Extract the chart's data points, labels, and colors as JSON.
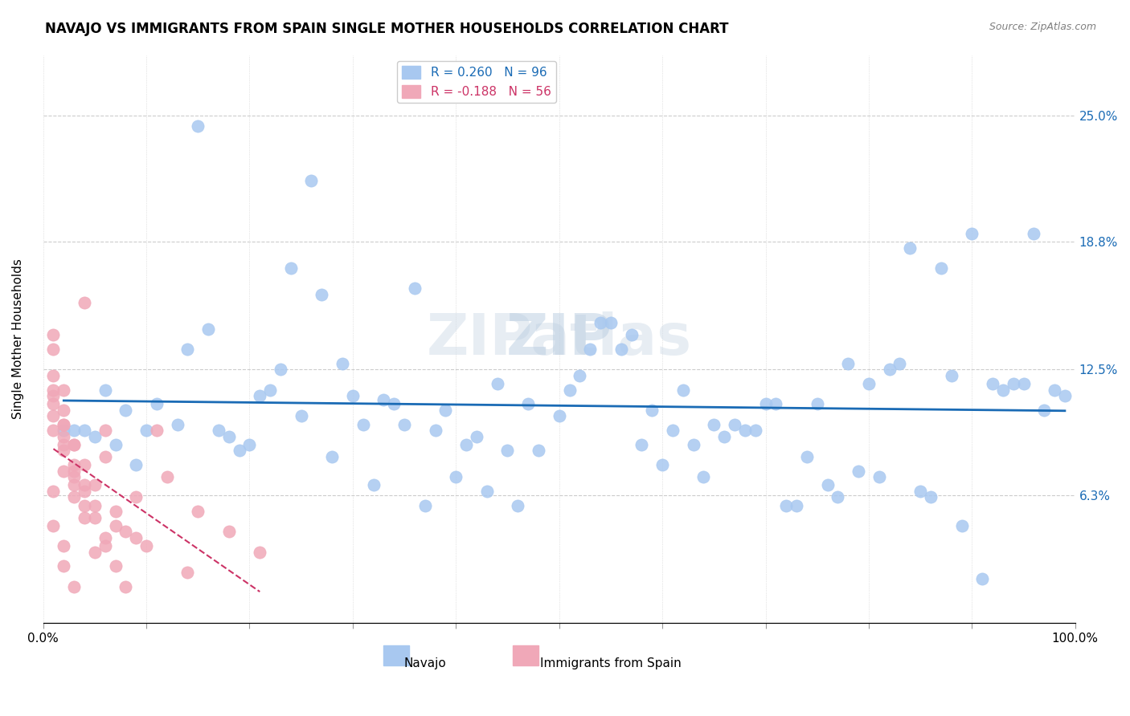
{
  "title": "NAVAJO VS IMMIGRANTS FROM SPAIN SINGLE MOTHER HOUSEHOLDS CORRELATION CHART",
  "source": "Source: ZipAtlas.com",
  "ylabel": "Single Mother Households",
  "xlabel": "",
  "xlim": [
    0,
    1.0
  ],
  "ylim": [
    0,
    0.28
  ],
  "xticks": [
    0.0,
    0.1,
    0.2,
    0.3,
    0.4,
    0.5,
    0.6,
    0.7,
    0.8,
    0.9,
    1.0
  ],
  "xticklabels": [
    "0.0%",
    "",
    "",
    "",
    "",
    "",
    "",
    "",
    "",
    "",
    "100.0%"
  ],
  "ytick_positions": [
    0.063,
    0.125,
    0.188,
    0.25
  ],
  "ytick_labels": [
    "6.3%",
    "12.5%",
    "18.8%",
    "25.0%"
  ],
  "navajo_R": 0.26,
  "navajo_N": 96,
  "spain_R": -0.188,
  "spain_N": 56,
  "navajo_color": "#a8c8f0",
  "navajo_line_color": "#1a6bb5",
  "spain_color": "#f0a8b8",
  "spain_line_color": "#cc3366",
  "watermark": "ZIPatlas",
  "navajo_scatter_x": [
    0.08,
    0.15,
    0.24,
    0.16,
    0.27,
    0.22,
    0.36,
    0.29,
    0.38,
    0.42,
    0.48,
    0.55,
    0.62,
    0.68,
    0.75,
    0.82,
    0.88,
    0.92,
    0.95,
    0.98,
    0.02,
    0.05,
    0.07,
    0.09,
    0.11,
    0.13,
    0.17,
    0.19,
    0.21,
    0.25,
    0.31,
    0.33,
    0.35,
    0.39,
    0.44,
    0.47,
    0.5,
    0.53,
    0.58,
    0.61,
    0.65,
    0.7,
    0.73,
    0.78,
    0.83,
    0.87,
    0.9,
    0.93,
    0.96,
    0.99,
    0.03,
    0.06,
    0.1,
    0.14,
    0.18,
    0.23,
    0.28,
    0.32,
    0.37,
    0.41,
    0.46,
    0.51,
    0.56,
    0.6,
    0.66,
    0.71,
    0.76,
    0.8,
    0.85,
    0.89,
    0.04,
    0.2,
    0.43,
    0.64,
    0.79,
    0.91,
    0.94,
    0.97,
    0.3,
    0.34,
    0.4,
    0.45,
    0.52,
    0.57,
    0.63,
    0.69,
    0.74,
    0.81,
    0.86,
    0.26,
    0.54,
    0.72,
    0.84,
    0.77,
    0.67,
    0.59
  ],
  "navajo_scatter_y": [
    0.105,
    0.245,
    0.175,
    0.145,
    0.162,
    0.115,
    0.165,
    0.128,
    0.095,
    0.092,
    0.085,
    0.148,
    0.115,
    0.095,
    0.108,
    0.125,
    0.122,
    0.118,
    0.118,
    0.115,
    0.095,
    0.092,
    0.088,
    0.078,
    0.108,
    0.098,
    0.095,
    0.085,
    0.112,
    0.102,
    0.098,
    0.11,
    0.098,
    0.105,
    0.118,
    0.108,
    0.102,
    0.135,
    0.088,
    0.095,
    0.098,
    0.108,
    0.058,
    0.128,
    0.128,
    0.175,
    0.192,
    0.115,
    0.192,
    0.112,
    0.095,
    0.115,
    0.095,
    0.135,
    0.092,
    0.125,
    0.082,
    0.068,
    0.058,
    0.088,
    0.058,
    0.115,
    0.135,
    0.078,
    0.092,
    0.108,
    0.068,
    0.118,
    0.065,
    0.048,
    0.095,
    0.088,
    0.065,
    0.072,
    0.075,
    0.022,
    0.118,
    0.105,
    0.112,
    0.108,
    0.072,
    0.085,
    0.122,
    0.142,
    0.088,
    0.095,
    0.082,
    0.072,
    0.062,
    0.218,
    0.148,
    0.058,
    0.185,
    0.062,
    0.098,
    0.105
  ],
  "spain_scatter_x": [
    0.01,
    0.02,
    0.03,
    0.04,
    0.05,
    0.06,
    0.07,
    0.08,
    0.09,
    0.1,
    0.01,
    0.02,
    0.03,
    0.04,
    0.05,
    0.06,
    0.01,
    0.02,
    0.03,
    0.04,
    0.05,
    0.01,
    0.02,
    0.03,
    0.04,
    0.01,
    0.02,
    0.03,
    0.01,
    0.02,
    0.01,
    0.02,
    0.03,
    0.01,
    0.02,
    0.01,
    0.01,
    0.02,
    0.03,
    0.04,
    0.05,
    0.06,
    0.07,
    0.08,
    0.02,
    0.03,
    0.04,
    0.15,
    0.18,
    0.21,
    0.12,
    0.09,
    0.11,
    0.14,
    0.07,
    0.06
  ],
  "spain_scatter_y": [
    0.102,
    0.098,
    0.088,
    0.078,
    0.068,
    0.095,
    0.055,
    0.045,
    0.042,
    0.038,
    0.112,
    0.085,
    0.075,
    0.065,
    0.058,
    0.042,
    0.095,
    0.075,
    0.062,
    0.052,
    0.035,
    0.108,
    0.088,
    0.072,
    0.058,
    0.115,
    0.092,
    0.068,
    0.122,
    0.098,
    0.135,
    0.105,
    0.078,
    0.048,
    0.038,
    0.065,
    0.142,
    0.115,
    0.088,
    0.068,
    0.052,
    0.038,
    0.028,
    0.018,
    0.028,
    0.018,
    0.158,
    0.055,
    0.045,
    0.035,
    0.072,
    0.062,
    0.095,
    0.025,
    0.048,
    0.082
  ]
}
